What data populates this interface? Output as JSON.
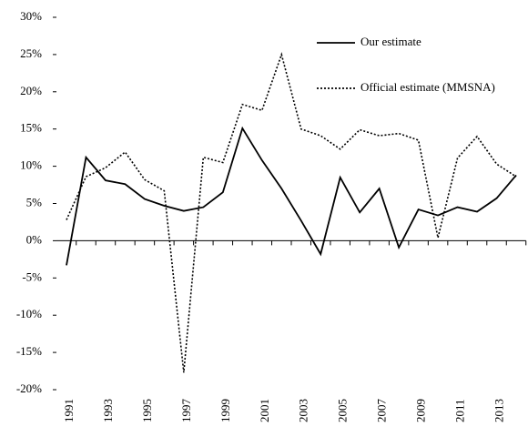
{
  "chart_data": {
    "type": "line",
    "categories": [
      "1991",
      null,
      "1993",
      null,
      "1995",
      null,
      "1997",
      null,
      "1999",
      null,
      "2001",
      null,
      "2003",
      null,
      "2005",
      null,
      "2007",
      null,
      "2009",
      null,
      "2011",
      null,
      "2013",
      null
    ],
    "series": [
      {
        "name": "Our estimate",
        "color": "#000000",
        "style": "solid",
        "values": [
          -3.3,
          11.2,
          8.1,
          7.6,
          5.6,
          4.7,
          4.0,
          4.5,
          6.5,
          15.1,
          10.8,
          7.0,
          2.7,
          -1.8,
          8.5,
          3.8,
          7.0,
          -0.9,
          4.2,
          3.4,
          4.5,
          3.9,
          5.7,
          8.8
        ]
      },
      {
        "name": "Official estimate (MMSNA)",
        "color": "#000000",
        "style": "dotted",
        "values": [
          2.8,
          8.6,
          9.8,
          11.9,
          8.2,
          6.7,
          -17.7,
          11.2,
          10.5,
          18.3,
          17.5,
          25.0,
          15.0,
          14.1,
          12.3,
          14.9,
          14.1,
          14.4,
          13.5,
          0.4,
          11.1,
          14.0,
          10.3,
          8.6
        ]
      }
    ],
    "ylim": [
      -20,
      30
    ],
    "yticks": [
      {
        "value": -20,
        "label": "-20%"
      },
      {
        "value": -15,
        "label": "-15%"
      },
      {
        "value": -10,
        "label": "-10%"
      },
      {
        "value": -5,
        "label": "-5%"
      },
      {
        "value": 0,
        "label": "0%"
      },
      {
        "value": 5,
        "label": "5%"
      },
      {
        "value": 10,
        "label": "10%"
      },
      {
        "value": 15,
        "label": "15%"
      },
      {
        "value": 20,
        "label": "20%"
      },
      {
        "value": 25,
        "label": "25%"
      },
      {
        "value": 30,
        "label": "30%"
      }
    ],
    "grid": false,
    "legend": "top-right"
  }
}
